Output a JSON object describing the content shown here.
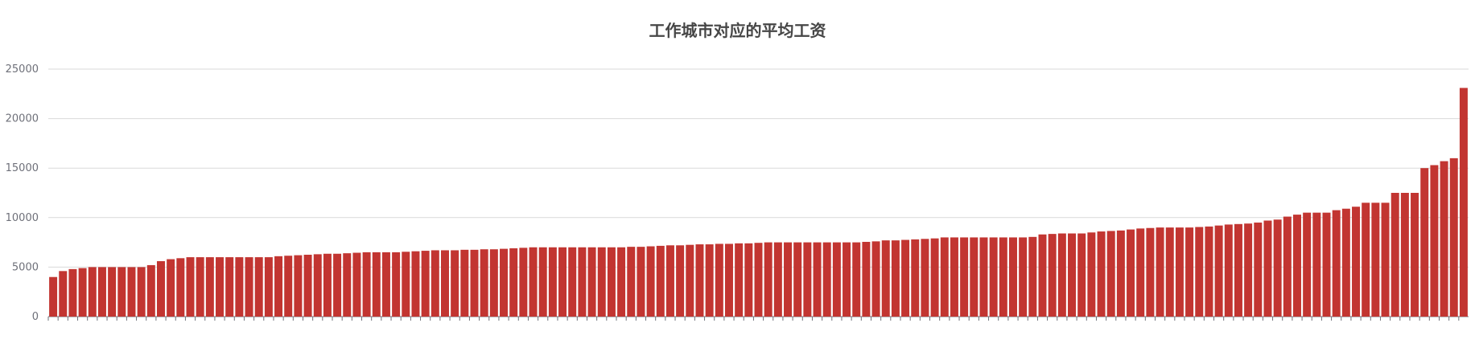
{
  "chart_data": {
    "type": "bar",
    "title": "工作城市对应的平均工资",
    "xlabel": "",
    "ylabel": "",
    "ylim": [
      0,
      25000
    ],
    "yticks": [
      0,
      5000,
      10000,
      15000,
      20000,
      25000
    ],
    "grid": true,
    "bar_color": "#c23531",
    "values": [
      4000,
      4600,
      4800,
      4900,
      5000,
      5000,
      5000,
      5000,
      5000,
      5000,
      5200,
      5600,
      5800,
      5900,
      6000,
      6000,
      6000,
      6000,
      6000,
      6000,
      6000,
      6000,
      6000,
      6100,
      6150,
      6200,
      6250,
      6300,
      6350,
      6350,
      6400,
      6450,
      6500,
      6500,
      6500,
      6500,
      6550,
      6600,
      6650,
      6700,
      6700,
      6700,
      6750,
      6750,
      6800,
      6800,
      6850,
      6900,
      6950,
      7000,
      7000,
      7000,
      7000,
      7000,
      7000,
      7000,
      7000,
      7000,
      7000,
      7050,
      7050,
      7100,
      7150,
      7200,
      7200,
      7250,
      7300,
      7300,
      7350,
      7350,
      7400,
      7400,
      7450,
      7500,
      7500,
      7500,
      7500,
      7500,
      7500,
      7500,
      7500,
      7500,
      7500,
      7550,
      7600,
      7700,
      7700,
      7750,
      7800,
      7850,
      7900,
      8000,
      8000,
      8000,
      8000,
      8000,
      8000,
      8000,
      8000,
      8000,
      8050,
      8300,
      8350,
      8400,
      8400,
      8400,
      8500,
      8600,
      8650,
      8700,
      8800,
      8900,
      8950,
      9000,
      9000,
      9000,
      9000,
      9050,
      9100,
      9200,
      9300,
      9350,
      9400,
      9500,
      9700,
      9800,
      10100,
      10300,
      10500,
      10500,
      10500,
      10750,
      10900,
      11100,
      11500,
      11500,
      11500,
      12500,
      12500,
      12500,
      15000,
      15300,
      15700,
      16000,
      23100
    ]
  }
}
